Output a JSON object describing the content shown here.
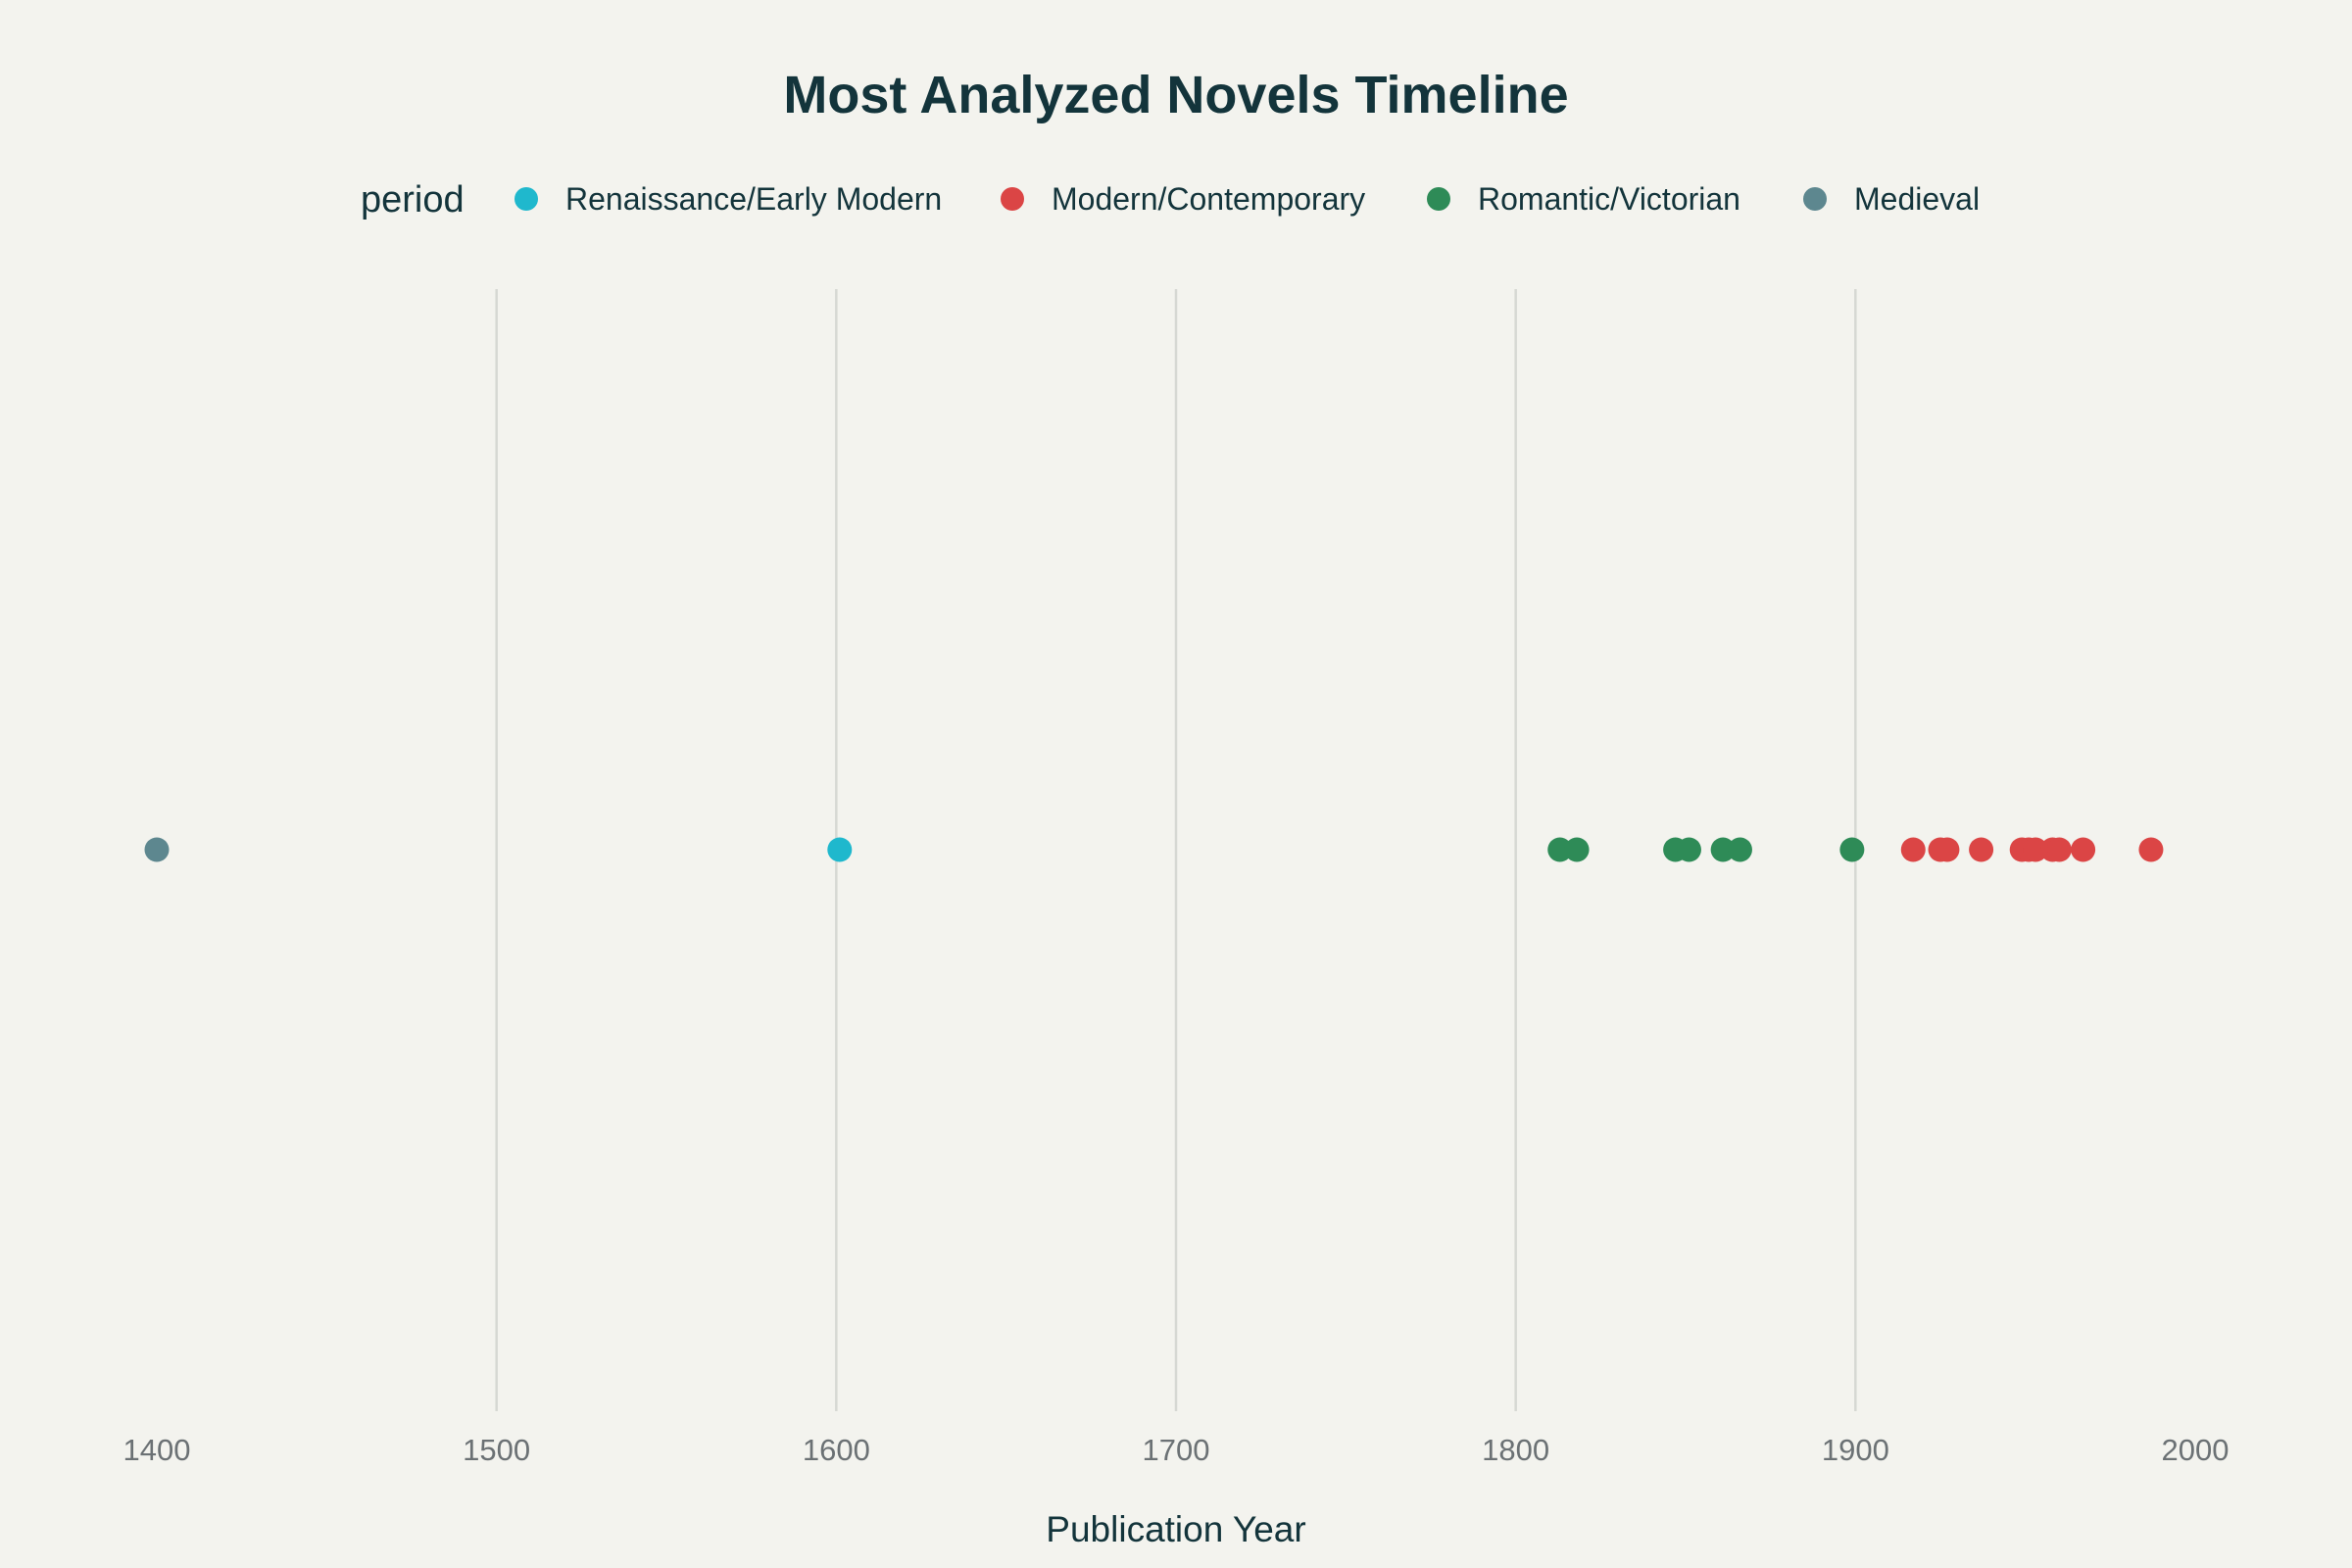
{
  "chart_data": {
    "type": "scatter",
    "title": "Most Analyzed Novels Timeline",
    "xlabel": "Publication Year",
    "ylabel": "",
    "xlim": [
      1400,
      2000
    ],
    "xticks": [
      1400,
      1500,
      1600,
      1700,
      1800,
      1900,
      2000
    ],
    "grid": true,
    "legend": {
      "title": "period",
      "placement": "top"
    },
    "series": [
      {
        "name": "Renaissance/Early Modern",
        "color": "#1fb8cd",
        "x": [
          1601
        ]
      },
      {
        "name": "Modern/Contemporary",
        "color": "#db4545",
        "x": [
          1917,
          1925,
          1927,
          1937,
          1949,
          1951,
          1953,
          1958,
          1960,
          1967,
          1987
        ]
      },
      {
        "name": "Romantic/Victorian",
        "color": "#2e8b57",
        "x": [
          1813,
          1818,
          1847,
          1851,
          1861,
          1866,
          1899
        ]
      },
      {
        "name": "Medieval",
        "color": "#5d878f",
        "x": [
          1400
        ]
      }
    ]
  }
}
